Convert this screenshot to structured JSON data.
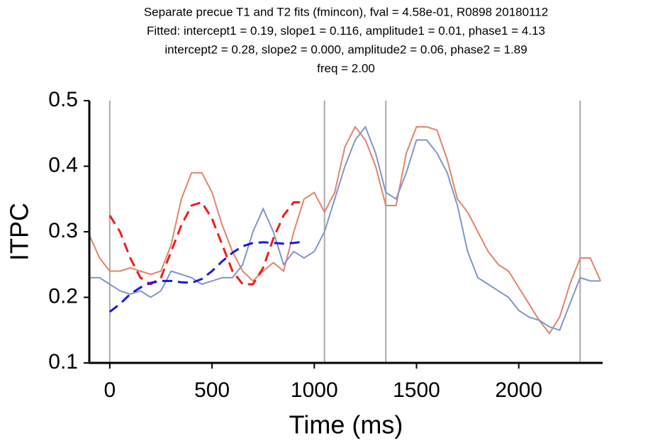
{
  "chart_data": {
    "type": "line",
    "title": [
      "Separate precue T1 and T2 fits (fmincon), fval = 4.58e-01, R0898 20180112",
      "Fitted: intercept1 = 0.19, slope1 = 0.116, amplitude1 = 0.01, phase1 = 4.13",
      "intercept2 = 0.28, slope2 = 0.000, amplitude2 = 0.06, phase2 = 1.89",
      "freq = 2.00"
    ],
    "xlabel": "Time (ms)",
    "ylabel": "ITPC",
    "xlim": [
      -100,
      2410
    ],
    "ylim": [
      0.1,
      0.5
    ],
    "xticks": [
      0,
      500,
      1000,
      1500,
      2000
    ],
    "yticks": [
      0.1,
      0.2,
      0.3,
      0.4,
      0.5
    ],
    "vlines": [
      0,
      1050,
      1350,
      2300
    ],
    "vline_color": "#aaaaaa",
    "series": [
      {
        "color": "#e0846a",
        "dashed": false,
        "x": [
          -100,
          -50,
          0,
          50,
          100,
          150,
          200,
          250,
          300,
          350,
          400,
          450,
          500,
          550,
          600,
          650,
          700,
          750,
          800,
          850,
          900,
          950,
          1000,
          1050,
          1100,
          1150,
          1200,
          1250,
          1300,
          1350,
          1400,
          1450,
          1500,
          1550,
          1600,
          1650,
          1700,
          1750,
          1800,
          1850,
          1900,
          1950,
          2000,
          2050,
          2100,
          2150,
          2200,
          2250,
          2300,
          2350,
          2400
        ],
        "values": [
          0.295,
          0.26,
          0.24,
          0.24,
          0.245,
          0.24,
          0.235,
          0.24,
          0.28,
          0.35,
          0.39,
          0.39,
          0.36,
          0.31,
          0.27,
          0.24,
          0.225,
          0.24,
          0.253,
          0.24,
          0.3,
          0.35,
          0.36,
          0.33,
          0.36,
          0.43,
          0.46,
          0.44,
          0.4,
          0.34,
          0.34,
          0.42,
          0.46,
          0.46,
          0.455,
          0.41,
          0.35,
          0.33,
          0.3,
          0.27,
          0.25,
          0.24,
          0.215,
          0.19,
          0.165,
          0.145,
          0.17,
          0.22,
          0.26,
          0.26,
          0.225
        ]
      },
      {
        "color": "#7f96c8",
        "dashed": false,
        "x": [
          -100,
          -50,
          0,
          50,
          100,
          150,
          200,
          250,
          300,
          350,
          400,
          450,
          500,
          550,
          600,
          650,
          700,
          750,
          800,
          850,
          900,
          950,
          1000,
          1050,
          1100,
          1150,
          1200,
          1250,
          1300,
          1350,
          1400,
          1450,
          1500,
          1550,
          1600,
          1650,
          1700,
          1750,
          1800,
          1850,
          1900,
          1950,
          2000,
          2050,
          2100,
          2150,
          2200,
          2250,
          2300,
          2350,
          2400
        ],
        "values": [
          0.23,
          0.23,
          0.22,
          0.21,
          0.205,
          0.21,
          0.2,
          0.21,
          0.24,
          0.235,
          0.23,
          0.22,
          0.225,
          0.23,
          0.23,
          0.25,
          0.3,
          0.335,
          0.3,
          0.25,
          0.27,
          0.26,
          0.27,
          0.3,
          0.35,
          0.4,
          0.44,
          0.46,
          0.42,
          0.36,
          0.35,
          0.39,
          0.44,
          0.44,
          0.42,
          0.39,
          0.34,
          0.27,
          0.23,
          0.22,
          0.21,
          0.2,
          0.18,
          0.17,
          0.165,
          0.155,
          0.15,
          0.19,
          0.23,
          0.225,
          0.225
        ]
      },
      {
        "color": "#ee1c1c",
        "dashed": true,
        "x": [
          0,
          50,
          100,
          150,
          200,
          250,
          300,
          350,
          400,
          450,
          500,
          550,
          600,
          650,
          700,
          750,
          800,
          850,
          900,
          950
        ],
        "values": [
          0.325,
          0.3,
          0.26,
          0.23,
          0.22,
          0.23,
          0.27,
          0.31,
          0.34,
          0.345,
          0.32,
          0.28,
          0.24,
          0.22,
          0.22,
          0.245,
          0.29,
          0.325,
          0.345,
          0.345
        ]
      },
      {
        "color": "#1a1ad6",
        "dashed": true,
        "x": [
          0,
          50,
          100,
          150,
          200,
          250,
          300,
          350,
          400,
          450,
          500,
          550,
          600,
          650,
          700,
          750,
          800,
          850,
          900,
          950
        ],
        "values": [
          0.178,
          0.19,
          0.205,
          0.215,
          0.222,
          0.225,
          0.225,
          0.223,
          0.222,
          0.228,
          0.24,
          0.255,
          0.268,
          0.278,
          0.283,
          0.284,
          0.283,
          0.282,
          0.283,
          0.285
        ]
      }
    ]
  }
}
